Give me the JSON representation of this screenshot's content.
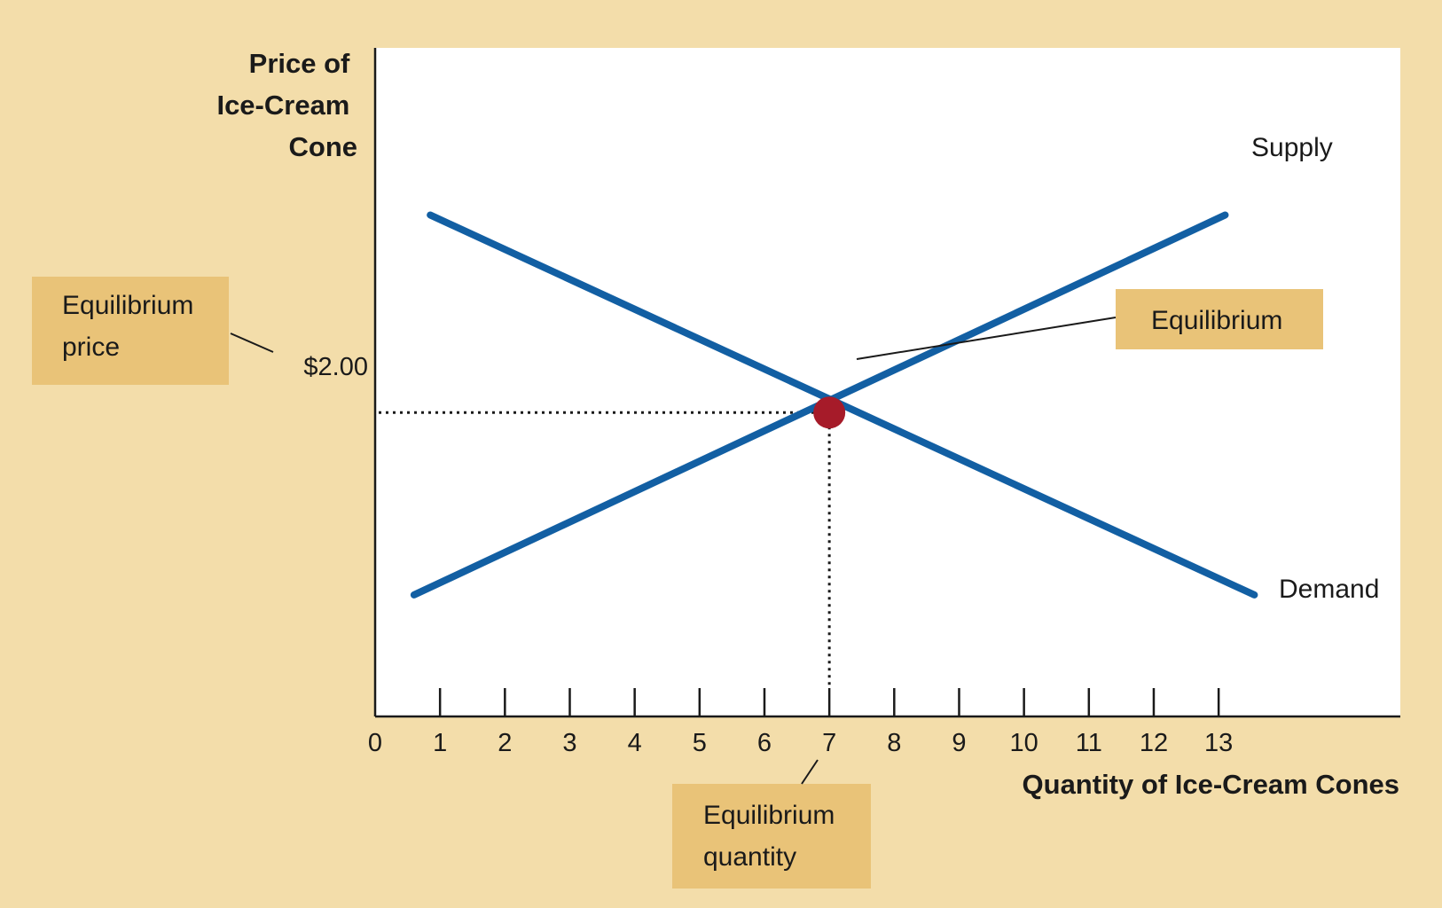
{
  "chart_data": {
    "type": "line",
    "x_axis": {
      "label": "Quantity of Ice-Cream Cones",
      "ticks": [
        "0",
        "1",
        "2",
        "3",
        "4",
        "5",
        "6",
        "7",
        "8",
        "9",
        "10",
        "11",
        "12",
        "13"
      ],
      "range": [
        0,
        15.8
      ]
    },
    "y_axis": {
      "label_lines": [
        "Price of",
        "Ice-Cream",
        "Cone"
      ],
      "ticks": [
        {
          "value": 2.0,
          "label": "$2.00"
        }
      ],
      "range": [
        0,
        4.4
      ]
    },
    "series": [
      {
        "name": "Supply",
        "points": [
          [
            0.6,
            0.8
          ],
          [
            13.1,
            3.3
          ]
        ],
        "color": "#125fa3"
      },
      {
        "name": "Demand",
        "points": [
          [
            0.85,
            3.3
          ],
          [
            13.55,
            0.8
          ]
        ],
        "color": "#125fa3"
      }
    ],
    "equilibrium": {
      "quantity": 7,
      "price": 2.0,
      "color": "#a61b29"
    },
    "annotations": {
      "equilibrium_price": [
        "Equilibrium",
        "price"
      ],
      "equilibrium": [
        "Equilibrium"
      ],
      "equilibrium_quantity": [
        "Equilibrium",
        "quantity"
      ]
    },
    "colors": {
      "background": "#f3ddaa",
      "plot_area": "#ffffff",
      "callout_box": "#e9c378"
    }
  }
}
